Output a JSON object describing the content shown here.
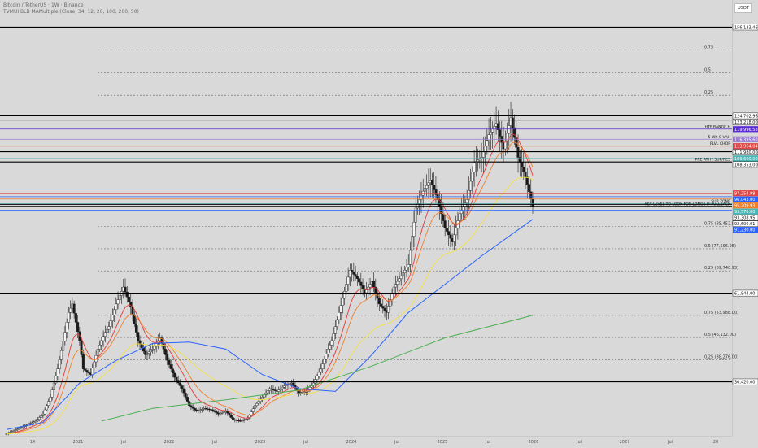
{
  "header": {
    "symbol_line": "Bitcoin / TetherUS · 1W · Binance",
    "indicator_line": "TVMUI BLB MAMultiple (Close, 34, 12, 20, 100, 200, 50)"
  },
  "currency_label": "USDT",
  "colors": {
    "background": "#d9d9d9",
    "candle": "#1a1a1a",
    "ma_orange": "#f07f2b",
    "ma_red": "#e53935",
    "ma_yellow": "#f5e142",
    "ma_blue": "#2962ff",
    "ma_green": "#4caf50"
  },
  "chart_data": {
    "type": "candlestick",
    "ylim": [
      13000,
      160000
    ],
    "x_ticks": [
      "14",
      "2021",
      "Jul",
      "2022",
      "Jul",
      "2023",
      "Jul",
      "2024",
      "Jul",
      "2025",
      "Jul",
      "2026",
      "Jul",
      "2027",
      "Jul",
      "20"
    ],
    "price_path": [
      [
        0,
        12000
      ],
      [
        8,
        16500
      ],
      [
        10,
        19000
      ],
      [
        12,
        25000
      ],
      [
        14,
        35000
      ],
      [
        16,
        48000
      ],
      [
        17,
        55000
      ],
      [
        18,
        58000
      ],
      [
        20,
        45000
      ],
      [
        21,
        35000
      ],
      [
        23,
        33000
      ],
      [
        25,
        42000
      ],
      [
        27,
        48000
      ],
      [
        28,
        50000
      ],
      [
        30,
        58000
      ],
      [
        32,
        64000
      ],
      [
        34,
        57000
      ],
      [
        36,
        45000
      ],
      [
        38,
        40000
      ],
      [
        40,
        42000
      ],
      [
        42,
        46000
      ],
      [
        44,
        38000
      ],
      [
        46,
        32000
      ],
      [
        48,
        28000
      ],
      [
        50,
        22000
      ],
      [
        52,
        20000
      ],
      [
        54,
        21000
      ],
      [
        56,
        20500
      ],
      [
        58,
        19000
      ],
      [
        60,
        20000
      ],
      [
        62,
        17000
      ],
      [
        64,
        16500
      ],
      [
        66,
        17500
      ],
      [
        68,
        22000
      ],
      [
        70,
        25000
      ],
      [
        72,
        28000
      ],
      [
        74,
        27000
      ],
      [
        76,
        29000
      ],
      [
        78,
        30000
      ],
      [
        80,
        26500
      ],
      [
        82,
        27000
      ],
      [
        84,
        30000
      ],
      [
        86,
        35000
      ],
      [
        88,
        42000
      ],
      [
        89,
        45000
      ],
      [
        90,
        50000
      ],
      [
        92,
        60000
      ],
      [
        94,
        70000
      ],
      [
        96,
        67000
      ],
      [
        98,
        62000
      ],
      [
        100,
        66000
      ],
      [
        102,
        58000
      ],
      [
        104,
        55000
      ],
      [
        106,
        64000
      ],
      [
        108,
        68000
      ],
      [
        110,
        72000
      ],
      [
        112,
        92000
      ],
      [
        114,
        98000
      ],
      [
        116,
        102000
      ],
      [
        118,
        95000
      ],
      [
        120,
        85000
      ],
      [
        122,
        80000
      ],
      [
        124,
        90000
      ],
      [
        126,
        95000
      ],
      [
        128,
        108000
      ],
      [
        130,
        110000
      ],
      [
        132,
        118000
      ],
      [
        134,
        122000
      ],
      [
        136,
        113000
      ],
      [
        138,
        124000
      ],
      [
        140,
        110000
      ],
      [
        142,
        103000
      ],
      [
        144,
        92600
      ]
    ],
    "moving_averages": [
      {
        "color": "#2962ff",
        "points": [
          [
            0,
            13500
          ],
          [
            10,
            16000
          ],
          [
            20,
            30000
          ],
          [
            30,
            38000
          ],
          [
            40,
            44000
          ],
          [
            50,
            44500
          ],
          [
            60,
            42000
          ],
          [
            70,
            33000
          ],
          [
            80,
            28000
          ],
          [
            90,
            27000
          ],
          [
            100,
            40000
          ],
          [
            110,
            55000
          ],
          [
            120,
            65000
          ],
          [
            130,
            75000
          ],
          [
            144,
            88000
          ]
        ]
      },
      {
        "color": "#4caf50",
        "points": [
          [
            26,
            16500
          ],
          [
            40,
            21000
          ],
          [
            60,
            24000
          ],
          [
            80,
            27500
          ],
          [
            100,
            36000
          ],
          [
            120,
            46000
          ],
          [
            144,
            54000
          ]
        ]
      }
    ],
    "horizontal_levels": [
      {
        "price": 156133.46,
        "label": "156,133.46",
        "style": "solid",
        "tag_bg": "#ffffff",
        "tag_fg": "#111111"
      },
      {
        "price": 124702.96,
        "label": "124,702.96",
        "style": "solid",
        "tag_bg": "#ffffff",
        "tag_fg": "#111111"
      },
      {
        "price": 123218.0,
        "label": "123,218.00",
        "style": "solid",
        "tag_bg": "#ffffff",
        "tag_fg": "#111111"
      },
      {
        "price": 119996.58,
        "label": "119,996.58",
        "style": "solid",
        "tag_bg": "#5b2bd6",
        "tag_fg": "#ffffff",
        "annotation": "HTF RANGE H"
      },
      {
        "price": 116395.6,
        "label": "116,395.60",
        "style": "solid",
        "tag_bg": "#9b7bd6",
        "tag_fg": "#ffffff",
        "annotation": "5 WK C VAH"
      },
      {
        "price": 113964.04,
        "label": "113,964.04",
        "style": "solid",
        "tag_bg": "#e04444",
        "tag_fg": "#ffffff",
        "annotation": "PLVL CHOP"
      },
      {
        "price": 111980.0,
        "label": "111,980.00",
        "style": "solid",
        "tag_bg": "#ffffff",
        "tag_fg": "#111111"
      },
      {
        "price": 109600.0,
        "label": "109,600.00",
        "style": "solid",
        "tag_bg": "#4ab6b6",
        "tag_fg": "#ffffff"
      },
      {
        "price": 108353.0,
        "label": "108,353.00",
        "style": "solid",
        "tag_bg": "#ffffff",
        "tag_fg": "#111111",
        "annotation": "PRE ATH / SUP/RES"
      },
      {
        "price": 97254.98,
        "label": "97,254.98",
        "style": "solid",
        "tag_bg": "#e04444",
        "tag_fg": "#ffffff"
      },
      {
        "price": 96043.0,
        "label": "96,043.00",
        "style": "solid",
        "tag_bg": "#2962ff",
        "tag_fg": "#ffffff"
      },
      {
        "price": 95209.93,
        "label": "95,209.93",
        "style": "solid",
        "tag_bg": "#f07f2b",
        "tag_fg": "#ffffff"
      },
      {
        "price": 93576.0,
        "label": "93,576.00",
        "style": "solid",
        "tag_bg": "#4ab6b6",
        "tag_fg": "#ffffff",
        "annotation": "SUP ZONE"
      },
      {
        "price": 93308.95,
        "label": "93,308.95",
        "style": "solid",
        "tag_bg": "#ffffff",
        "tag_fg": "#111111"
      },
      {
        "price": 92600.01,
        "label": "92,600.01",
        "style": "solid",
        "tag_bg": "#ffffff",
        "tag_fg": "#111111",
        "annotation": "KEY LEVEL TO LOOK FOR LONGS IF PULLBACK"
      },
      {
        "price": 91230.0,
        "label": "91,230.00",
        "style": "solid",
        "tag_bg": "#2962ff",
        "tag_fg": "#ffffff"
      },
      {
        "price": 61844.0,
        "label": "61,844.00",
        "style": "solid",
        "tag_bg": "#ffffff",
        "tag_fg": "#111111"
      },
      {
        "price": 30420.0,
        "label": "30,420.00",
        "style": "solid",
        "tag_bg": "#ffffff",
        "tag_fg": "#111111"
      }
    ],
    "fib_levels": [
      {
        "price": 148000,
        "label": "0.75"
      },
      {
        "price": 140000,
        "label": "0.5"
      },
      {
        "price": 132000,
        "label": "0.25"
      },
      {
        "price": 85452.95,
        "label": "0.75 (85,452.95)"
      },
      {
        "price": 77596.95,
        "label": "0.5 (77,596.95)"
      },
      {
        "price": 69740.95,
        "label": "0.25 (69,740.95)"
      },
      {
        "price": 53988.0,
        "label": "0.75 (53,988.00)"
      },
      {
        "price": 46132.0,
        "label": "0.5 (46,132.00)"
      },
      {
        "price": 38276.0,
        "label": "0.25 (38,276.00)"
      }
    ]
  }
}
